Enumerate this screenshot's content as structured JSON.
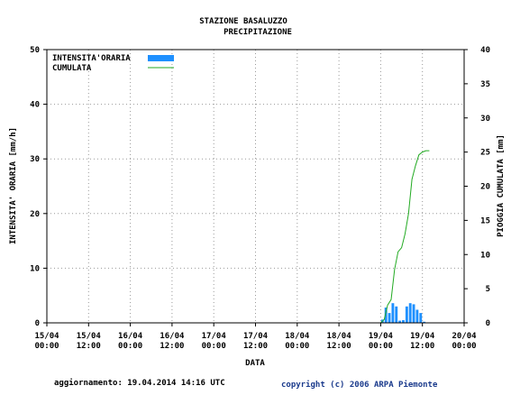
{
  "chart_data": {
    "type": "bar",
    "title": "STAZIONE BASALUZZO",
    "subtitle": "PRECIPITAZIONE",
    "xlabel": "DATA",
    "ylabel": "INTENSITA' ORARIA [mm/h]",
    "y2label": "PIOGGIA CUMULATA [mm]",
    "ylim": [
      0,
      50
    ],
    "y2lim": [
      0,
      40
    ],
    "y_ticks": [
      "0",
      "10",
      "20",
      "30",
      "40",
      "50"
    ],
    "y2_ticks": [
      "0",
      "5",
      "10",
      "15",
      "20",
      "25",
      "30",
      "35",
      "40"
    ],
    "x_ticks": [
      {
        "date": "15/04",
        "time": "00:00"
      },
      {
        "date": "15/04",
        "time": "12:00"
      },
      {
        "date": "16/04",
        "time": "00:00"
      },
      {
        "date": "16/04",
        "time": "12:00"
      },
      {
        "date": "17/04",
        "time": "00:00"
      },
      {
        "date": "17/04",
        "time": "12:00"
      },
      {
        "date": "18/04",
        "time": "00:00"
      },
      {
        "date": "18/04",
        "time": "12:00"
      },
      {
        "date": "19/04",
        "time": "00:00"
      },
      {
        "date": "19/04",
        "time": "12:00"
      },
      {
        "date": "20/04",
        "time": "00:00"
      }
    ],
    "grid": true,
    "legend_position": "top-left",
    "series": [
      {
        "name": "INTENSITA'ORARIA",
        "type": "bar",
        "axis": "left",
        "color": "#1e90ff",
        "x": [
          "19/04 01:00",
          "19/04 02:00",
          "19/04 03:00",
          "19/04 04:00",
          "19/04 05:00",
          "19/04 06:00",
          "19/04 07:00",
          "19/04 08:00",
          "19/04 09:00",
          "19/04 10:00",
          "19/04 11:00",
          "19/04 12:00",
          "19/04 13:00"
        ],
        "values": [
          0.6,
          2.8,
          1.8,
          3.6,
          3.0,
          0.4,
          0.5,
          3.0,
          3.6,
          3.4,
          2.4,
          1.8,
          0.2
        ]
      },
      {
        "name": "CUMULATA",
        "type": "line",
        "axis": "right",
        "color": "#22aa22",
        "x": [
          "19/04 00:00",
          "19/04 01:00",
          "19/04 02:00",
          "19/04 03:00",
          "19/04 04:00",
          "19/04 05:00",
          "19/04 06:00",
          "19/04 07:00",
          "19/04 08:00",
          "19/04 09:00",
          "19/04 10:00",
          "19/04 11:00",
          "19/04 12:00",
          "19/04 13:00",
          "19/04 14:00"
        ],
        "values": [
          0,
          0.5,
          2.6,
          3.4,
          7.8,
          10.4,
          11.0,
          13.0,
          16.0,
          21.0,
          23.0,
          24.6,
          25.0,
          25.2,
          25.2
        ]
      }
    ]
  },
  "footer": {
    "updated": "aggiornamento: 19.04.2014 14:16 UTC",
    "copyright": "copyright (c) 2006 ARPA Piemonte"
  }
}
